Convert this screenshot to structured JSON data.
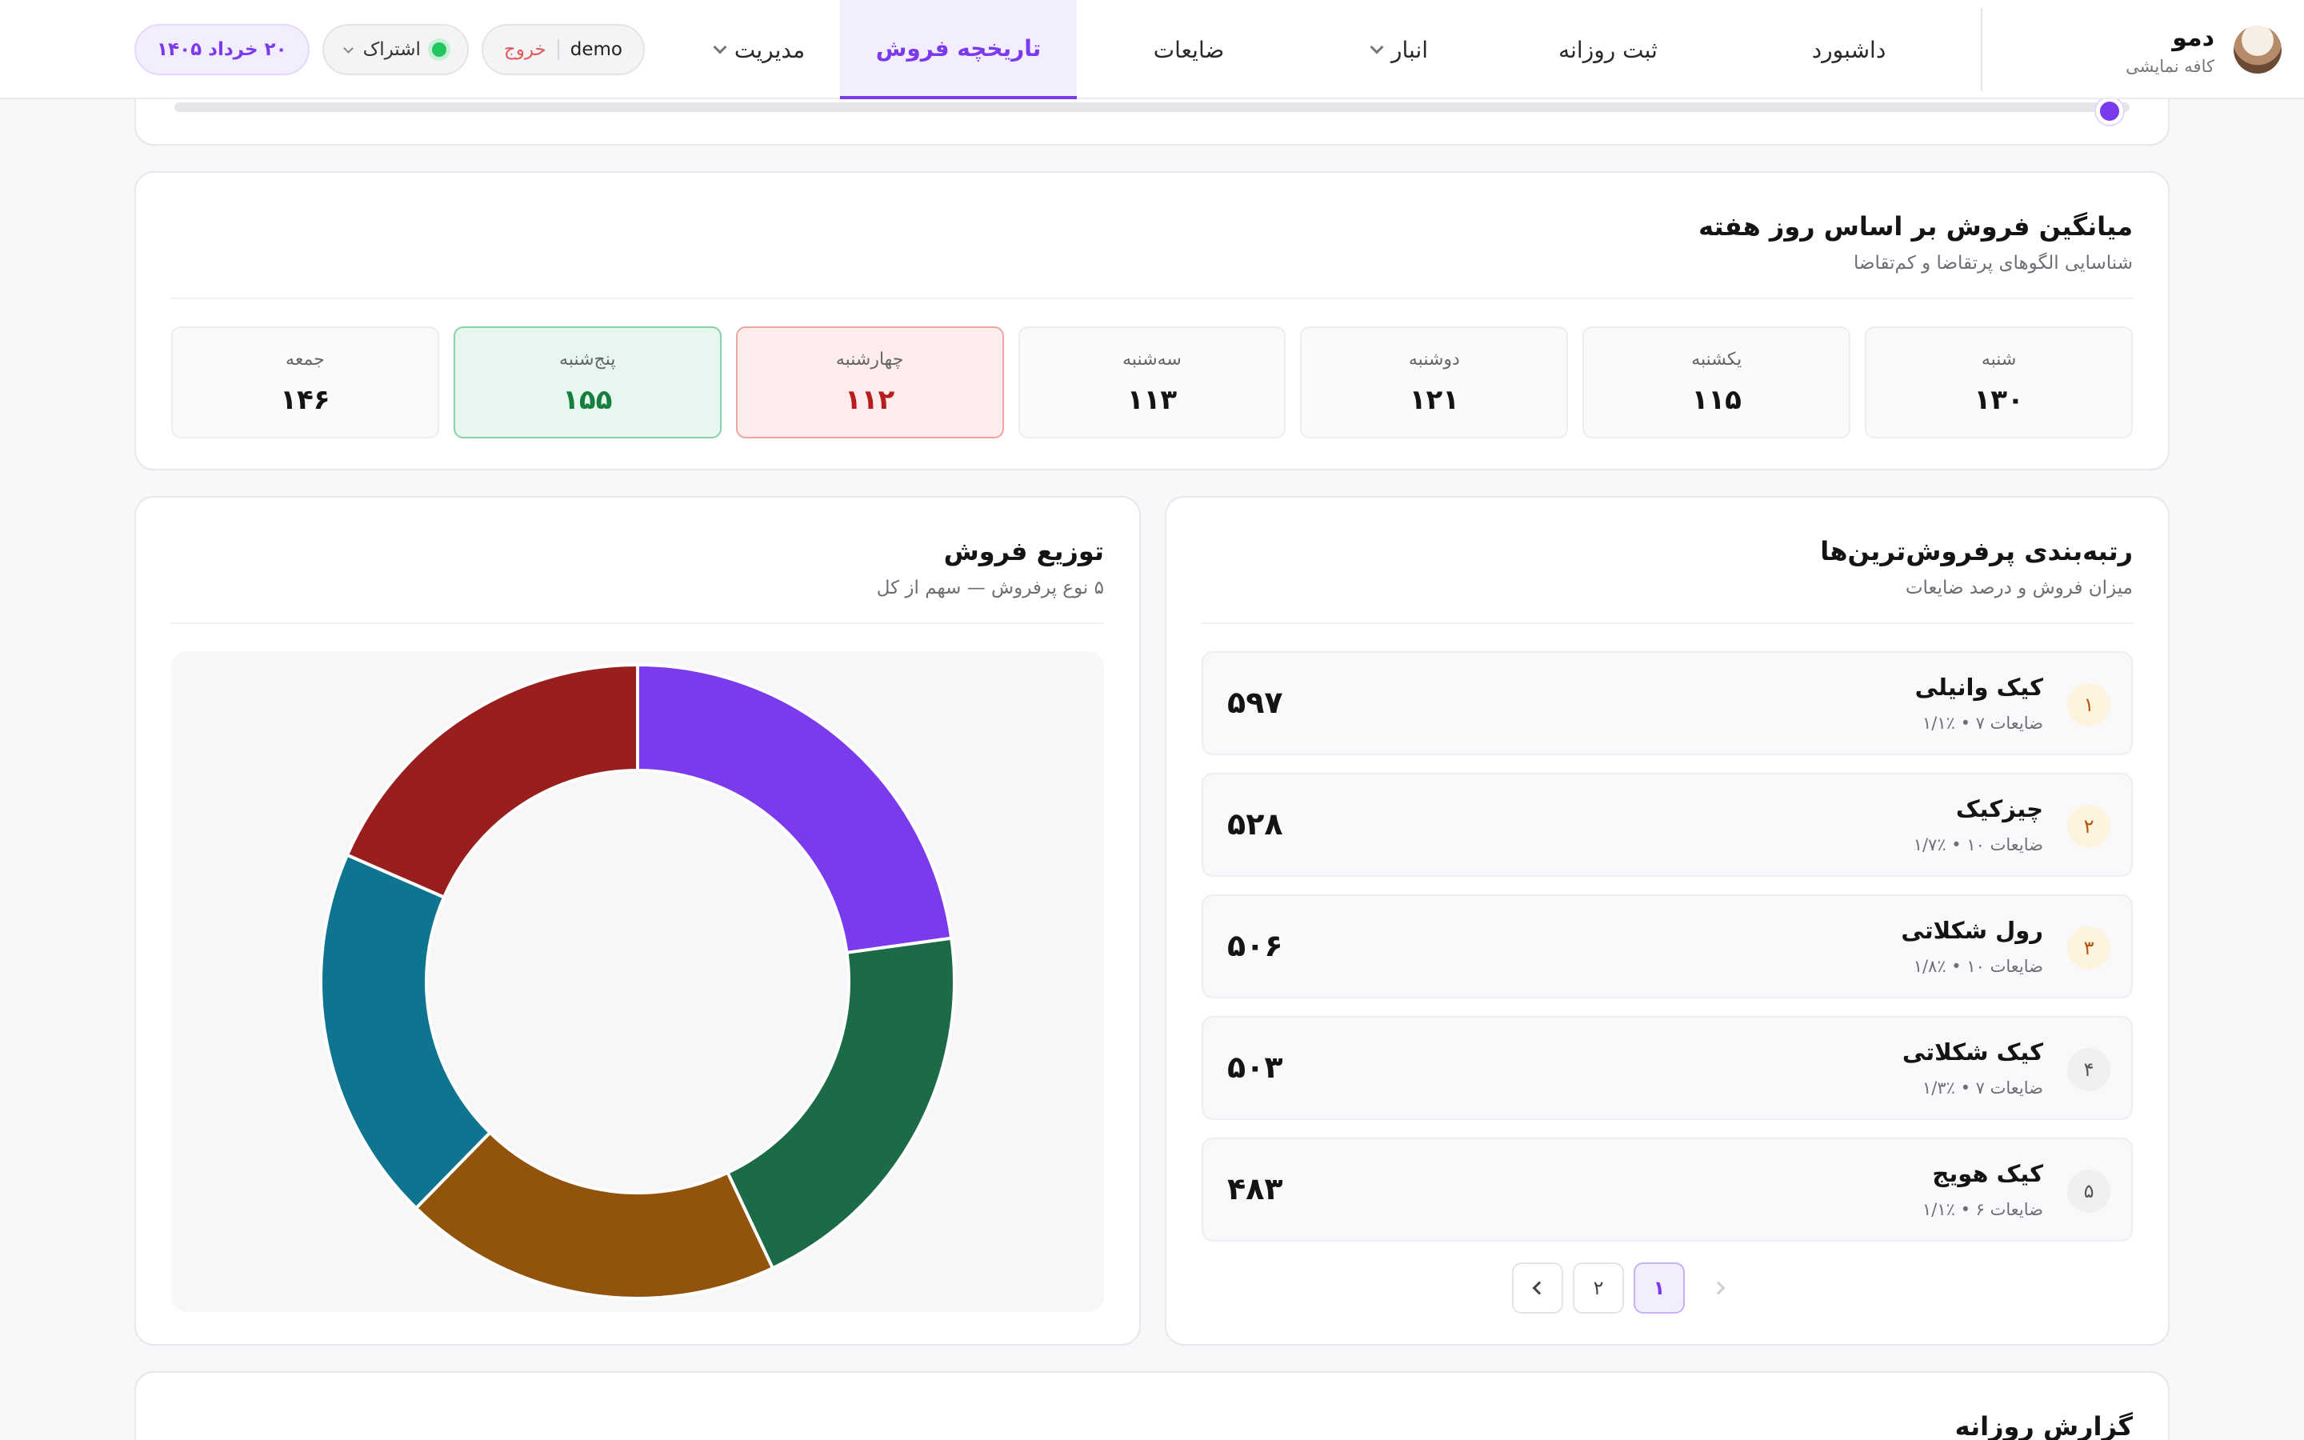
{
  "brand": {
    "name": "دمو",
    "subtitle": "کافه نمایشی"
  },
  "nav": {
    "items": [
      {
        "label": "داشبورد",
        "dropdown": false,
        "active": false
      },
      {
        "label": "ثبت روزانه",
        "dropdown": false,
        "active": false
      },
      {
        "label": "انبار",
        "dropdown": true,
        "active": false
      },
      {
        "label": "ضایعات",
        "dropdown": false,
        "active": false
      },
      {
        "label": "تاریخچه فروش",
        "dropdown": false,
        "active": true
      },
      {
        "label": "مدیریت",
        "dropdown": true,
        "active": false
      }
    ],
    "date": "۲۰ خرداد ۱۴۰۵",
    "subscription": "اشتراک",
    "user": "demo",
    "logout": "خروج"
  },
  "weekday": {
    "title": "میانگین فروش بر اساس روز هفته",
    "subtitle": "شناسایی الگوهای پرتقاضا و کم‌تقاضا",
    "days": [
      {
        "name": "شنبه",
        "value": "۱۳۰",
        "state": "normal"
      },
      {
        "name": "یکشنبه",
        "value": "۱۱۵",
        "state": "normal"
      },
      {
        "name": "دوشنبه",
        "value": "۱۲۱",
        "state": "normal"
      },
      {
        "name": "سه‌شنبه",
        "value": "۱۱۳",
        "state": "normal"
      },
      {
        "name": "چهارشنبه",
        "value": "۱۱۲",
        "state": "worst"
      },
      {
        "name": "پنج‌شنبه",
        "value": "۱۵۵",
        "state": "best"
      },
      {
        "name": "جمعه",
        "value": "۱۴۶",
        "state": "normal"
      }
    ]
  },
  "ranking": {
    "title": "رتبه‌بندی پرفروش‌ترین‌ها",
    "subtitle": "میزان فروش و درصد ضایعات",
    "items": [
      {
        "rank": "۱",
        "name": "کیک وانیلی",
        "meta": "ضایعات ۷ • ٪۱/۱",
        "value": "۵۹۷",
        "highlight": true
      },
      {
        "rank": "۲",
        "name": "چیزکیک",
        "meta": "ضایعات ۱۰ • ٪۱/۷",
        "value": "۵۲۸",
        "highlight": true
      },
      {
        "rank": "۳",
        "name": "رول شکلاتی",
        "meta": "ضایعات ۱۰ • ٪۱/۸",
        "value": "۵۰۶",
        "highlight": true
      },
      {
        "rank": "۴",
        "name": "کیک شکلاتی",
        "meta": "ضایعات ۷ • ٪۱/۳",
        "value": "۵۰۳",
        "highlight": false
      },
      {
        "rank": "۵",
        "name": "کیک هویج",
        "meta": "ضایعات ۶ • ٪۱/۱",
        "value": "۴۸۳",
        "highlight": false
      }
    ],
    "pages": [
      "۱",
      "۲"
    ],
    "current_page": "۱"
  },
  "distribution": {
    "title": "توزیع فروش",
    "subtitle": "۵ نوع پرفروش — سهم از کل"
  },
  "chart_data": {
    "type": "pie",
    "variant": "donut",
    "title": "توزیع فروش",
    "slices": [
      {
        "value": 597,
        "color": "#7c3aed"
      },
      {
        "value": 528,
        "color": "#1b6b47"
      },
      {
        "value": 506,
        "color": "#92540c"
      },
      {
        "value": 503,
        "color": "#0e7490"
      },
      {
        "value": 483,
        "color": "#991f1f"
      }
    ],
    "start": "top",
    "direction": "clockwise"
  },
  "daily": {
    "title": "گزارش روزانه"
  }
}
